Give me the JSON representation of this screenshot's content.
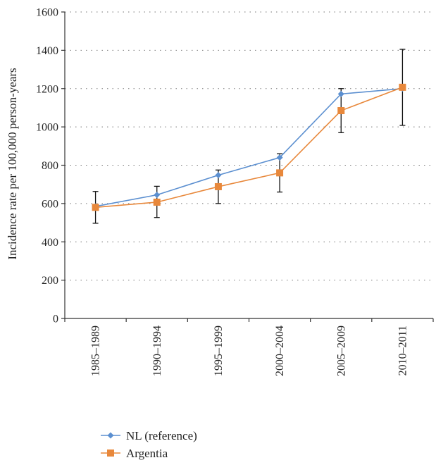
{
  "chart_data": {
    "type": "line",
    "title": "",
    "xlabel": "",
    "ylabel": "Incidence rate per 100,000 person-years",
    "ylim": [
      0,
      1600
    ],
    "y_ticks": [
      "0",
      "200",
      "400",
      "600",
      "800",
      "1000",
      "1200",
      "1400",
      "1600"
    ],
    "categories": [
      "1985–1989",
      "1990–1994",
      "1995–1999",
      "2000–2004",
      "2005–2009",
      "2010–2011"
    ],
    "grid": "horizontal dotted",
    "legend_position": "bottom-left",
    "series": [
      {
        "name": "NL (reference)",
        "color": "#5b8fd0",
        "marker": "diamond",
        "values": [
          585,
          645,
          748,
          840,
          1172,
          1200
        ]
      },
      {
        "name": "Argentia",
        "color": "#e8883b",
        "marker": "square",
        "values": [
          580,
          607,
          688,
          760,
          1085,
          1207
        ],
        "error_low": [
          497,
          527,
          600,
          660,
          970,
          1008
        ],
        "error_high": [
          663,
          690,
          775,
          860,
          1200,
          1405
        ]
      }
    ]
  }
}
